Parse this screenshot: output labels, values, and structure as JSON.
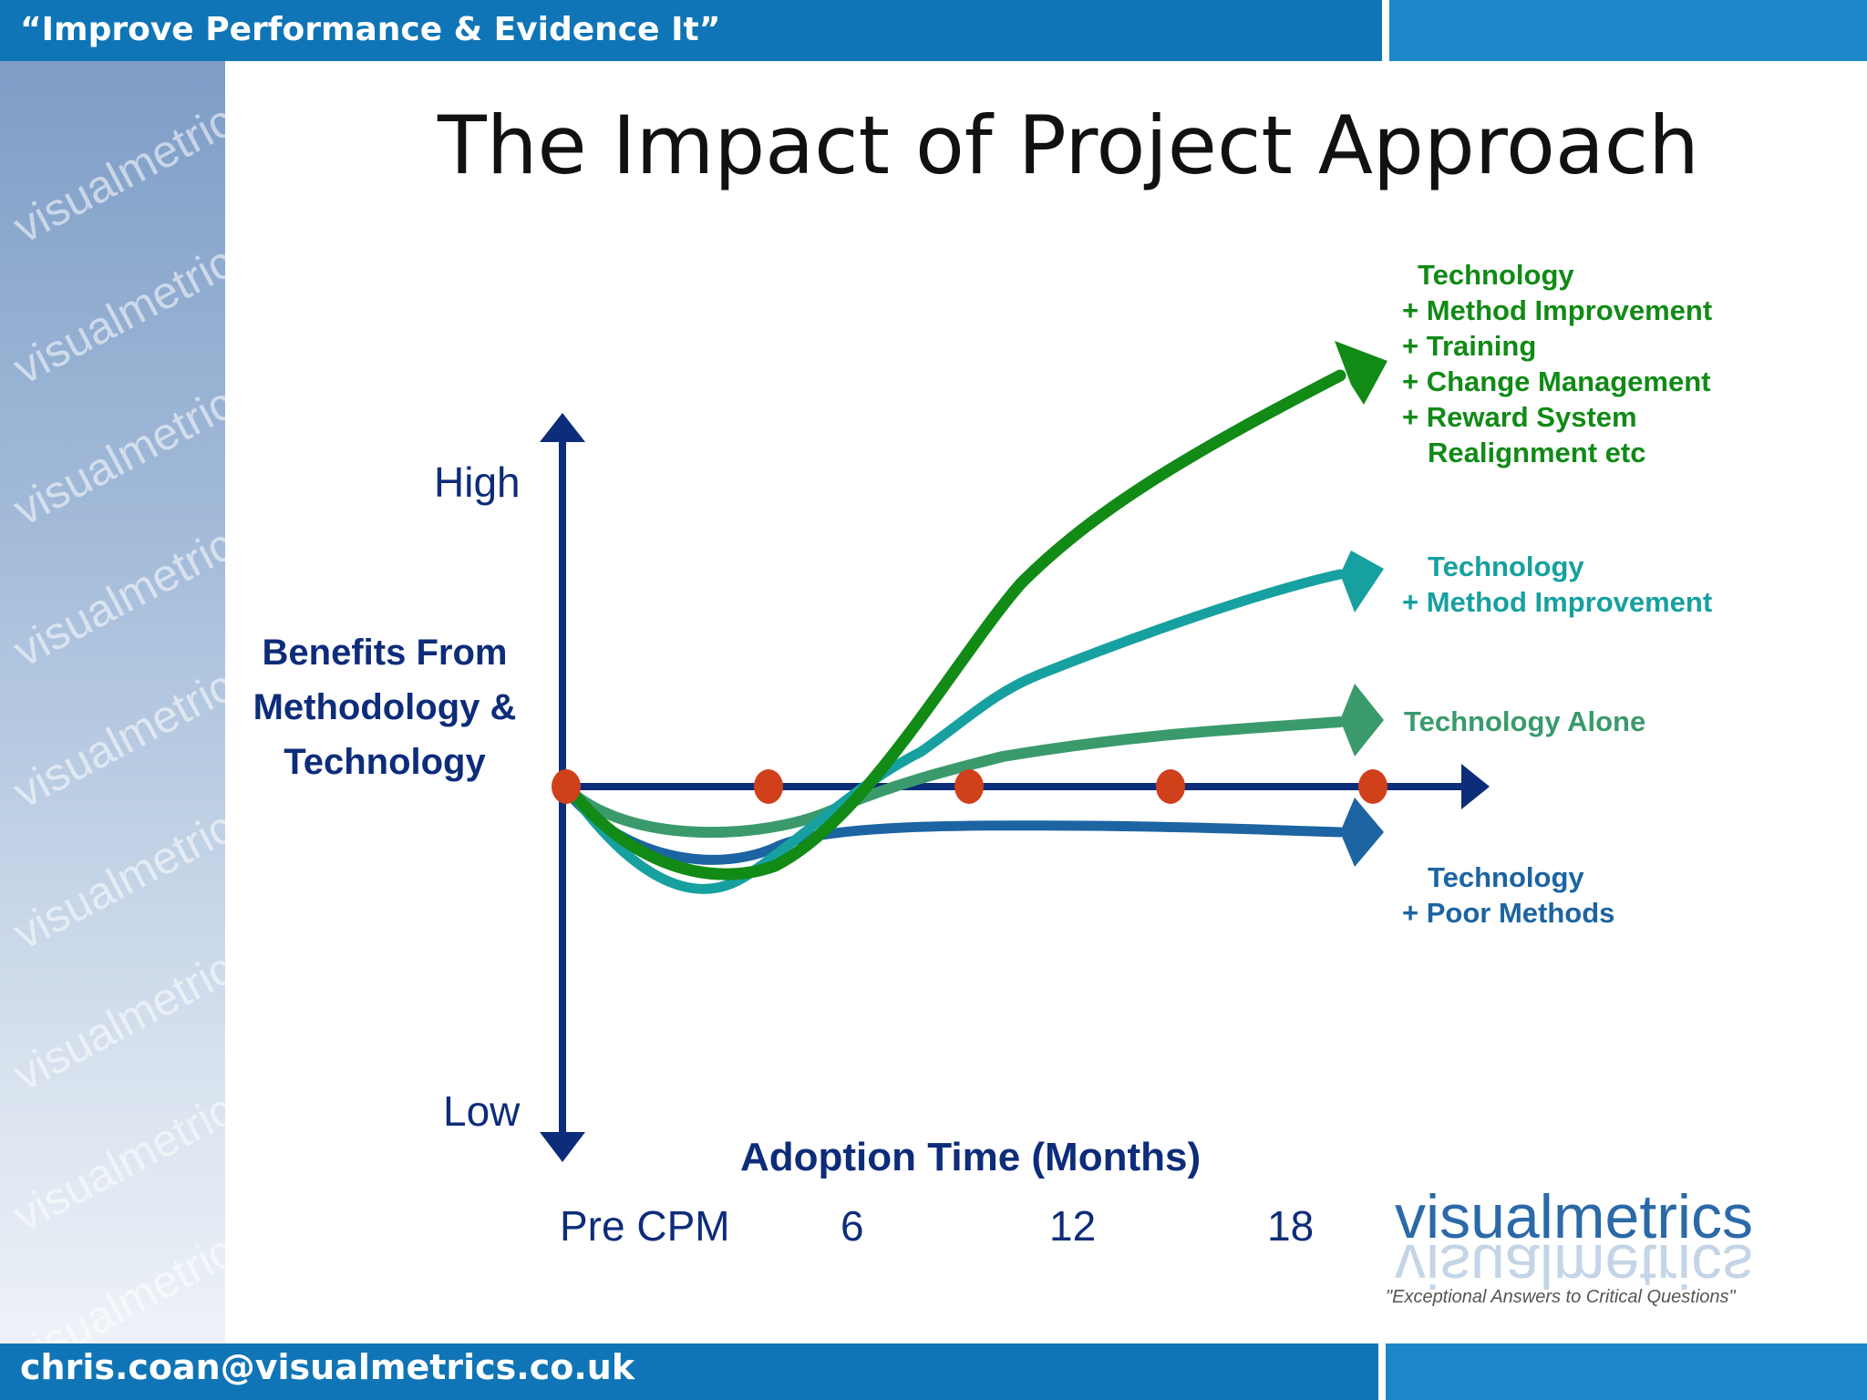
{
  "header": {
    "tagline": "“Improve Performance & Evidence It”"
  },
  "footer": {
    "email": "chris.coan@visualmetrics.co.uk"
  },
  "sidebar": {
    "watermark": "visualmetrics"
  },
  "slide": {
    "title": "The Impact of Project Approach"
  },
  "diagram": {
    "y_axis": {
      "high": "High",
      "low": "Low",
      "title_lines": [
        "Benefits From",
        "Methodology &",
        "Technology"
      ]
    },
    "x_axis": {
      "title": "Adoption Time (Months)",
      "ticks": [
        "Pre CPM",
        "6",
        "12",
        "18"
      ]
    },
    "curves": [
      {
        "lines": [
          "Technology",
          "+ Method Improvement",
          "+ Training",
          "+ Change  Management",
          "+ Reward System",
          "   Realignment etc"
        ],
        "color": "#118a16"
      },
      {
        "lines": [
          "Technology",
          "+ Method Improvement"
        ],
        "color": "#17a0a0"
      },
      {
        "lines": [
          "Technology Alone"
        ],
        "color": "#3a9a6c"
      },
      {
        "lines": [
          "Technology",
          "+ Poor Methods"
        ],
        "color": "#1c64a2"
      }
    ],
    "marker_color": "#d0401b",
    "axis_color": "#0d2c7a"
  },
  "logo": {
    "word": "visualmetrics",
    "tagline": "\"Exceptional Answers to Critical Questions\""
  }
}
